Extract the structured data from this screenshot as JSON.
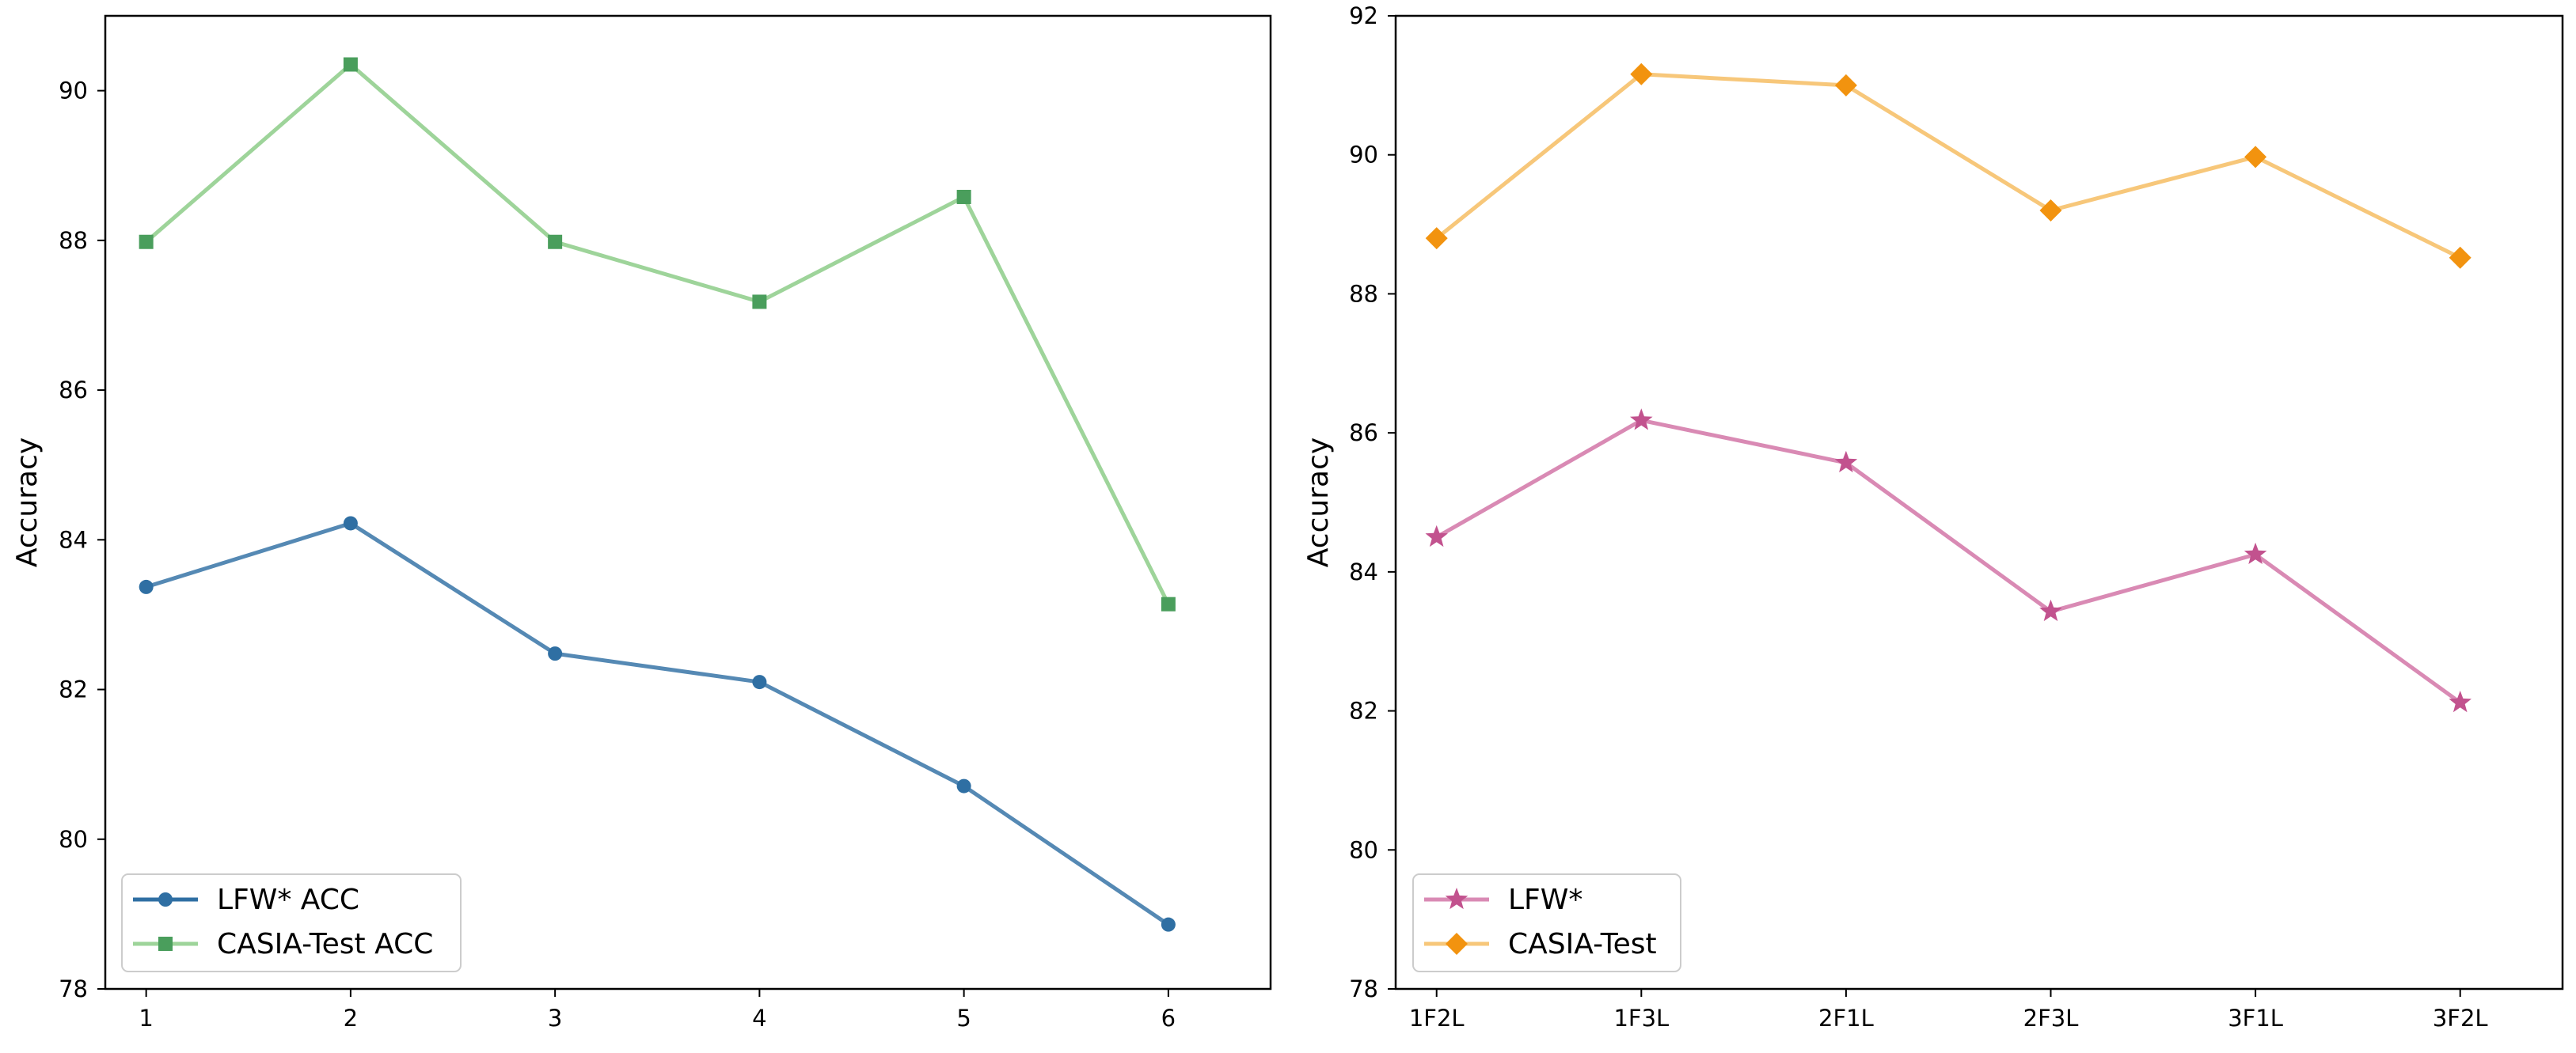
{
  "chart_data": [
    {
      "type": "line",
      "title": "",
      "xlabel": "",
      "ylabel": "Accuracy",
      "categories": [
        "1",
        "2",
        "3",
        "4",
        "5",
        "6"
      ],
      "xlim": [
        0.8,
        6.5
      ],
      "ylim": [
        78,
        91
      ],
      "yticks": [
        78,
        80,
        82,
        84,
        86,
        88,
        90
      ],
      "legend_position": "lower-left",
      "series": [
        {
          "name": "LFW* ACC",
          "color": "#2f6fa3",
          "marker": "circle",
          "values": [
            83.37,
            84.22,
            82.48,
            82.1,
            80.71,
            78.86
          ]
        },
        {
          "name": "CASIA-Test ACC",
          "color": "#4a9e5c",
          "line_color": "#9ed49a",
          "marker": "square",
          "values": [
            87.98,
            90.35,
            87.98,
            87.18,
            88.58,
            83.14
          ]
        }
      ]
    },
    {
      "type": "line",
      "title": "",
      "xlabel": "",
      "ylabel": "Accuracy",
      "categories": [
        "1F2L",
        "1F3L",
        "2F1L",
        "2F3L",
        "3F1L",
        "3F2L"
      ],
      "ylim": [
        78,
        92
      ],
      "yticks": [
        78,
        80,
        82,
        84,
        86,
        88,
        90,
        92
      ],
      "legend_position": "lower-left",
      "series": [
        {
          "name": "LFW*",
          "color": "#c2528e",
          "line_color": "#d98ab4",
          "marker": "star",
          "values": [
            84.5,
            86.18,
            85.57,
            83.43,
            84.25,
            82.12
          ]
        },
        {
          "name": "CASIA-Test",
          "color": "#f2930f",
          "line_color": "#f7c77a",
          "marker": "diamond",
          "values": [
            88.8,
            91.16,
            91.0,
            89.2,
            89.97,
            88.52
          ]
        }
      ]
    }
  ]
}
